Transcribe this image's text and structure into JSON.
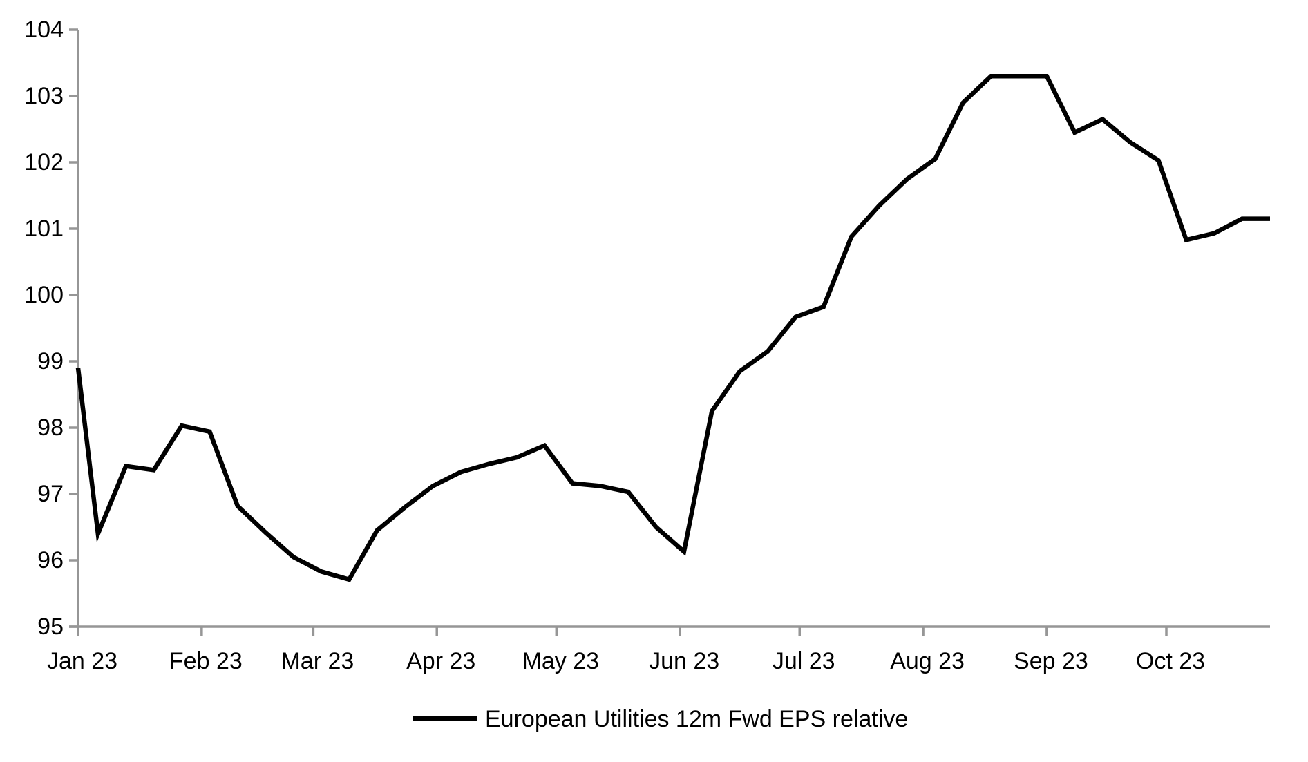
{
  "chart_data": {
    "type": "line",
    "title": "",
    "grid": "off",
    "legend": {
      "label": "European Utilities 12m Fwd EPS relative",
      "position": "bottom-center"
    },
    "colors": {
      "line": "#000000",
      "axis": "#969696",
      "text": "#000000",
      "background": "#ffffff"
    },
    "y_axis": {
      "min": 95,
      "max": 104,
      "tick_step": 1,
      "tick_labels": [
        "95",
        "96",
        "97",
        "98",
        "99",
        "100",
        "101",
        "102",
        "103",
        "104"
      ]
    },
    "x_axis": {
      "start_date": "2023-01-01",
      "end_date": "2023-10-29",
      "tick_dates": [
        "2023-01-01",
        "2023-02-01",
        "2023-03-01",
        "2023-04-01",
        "2023-05-01",
        "2023-06-01",
        "2023-07-01",
        "2023-08-01",
        "2023-09-01",
        "2023-10-01"
      ],
      "tick_labels": [
        "Jan 23",
        "Feb 23",
        "Mar 23",
        "Apr 23",
        "May 23",
        "Jun 23",
        "Jul 23",
        "Aug 23",
        "Sep 23",
        "Oct 23"
      ]
    },
    "series": [
      {
        "name": "European Utilities 12m Fwd EPS relative",
        "color": "#000000",
        "dates": [
          "2023-01-01",
          "2023-01-06",
          "2023-01-13",
          "2023-01-20",
          "2023-01-27",
          "2023-02-03",
          "2023-02-10",
          "2023-02-17",
          "2023-02-24",
          "2023-03-03",
          "2023-03-10",
          "2023-03-17",
          "2023-03-24",
          "2023-03-31",
          "2023-04-07",
          "2023-04-14",
          "2023-04-21",
          "2023-04-28",
          "2023-05-05",
          "2023-05-12",
          "2023-05-19",
          "2023-05-26",
          "2023-06-02",
          "2023-06-09",
          "2023-06-16",
          "2023-06-23",
          "2023-06-30",
          "2023-07-07",
          "2023-07-14",
          "2023-07-21",
          "2023-07-28",
          "2023-08-04",
          "2023-08-11",
          "2023-08-18",
          "2023-08-25",
          "2023-09-01",
          "2023-09-08",
          "2023-09-15",
          "2023-09-22",
          "2023-09-29",
          "2023-10-06",
          "2023-10-13",
          "2023-10-20",
          "2023-10-27"
        ],
        "values": [
          98.9,
          96.4,
          97.42,
          97.36,
          98.03,
          97.94,
          96.82,
          96.42,
          96.05,
          95.83,
          95.71,
          96.45,
          96.8,
          97.12,
          97.33,
          97.45,
          97.55,
          97.73,
          97.16,
          97.12,
          97.03,
          96.5,
          96.13,
          98.25,
          98.85,
          99.15,
          99.67,
          99.82,
          100.88,
          101.35,
          101.75,
          102.05,
          102.9,
          103.3,
          103.3,
          103.3,
          102.45,
          102.65,
          102.3,
          102.03,
          100.83,
          100.93,
          101.15,
          101.15
        ]
      }
    ]
  }
}
